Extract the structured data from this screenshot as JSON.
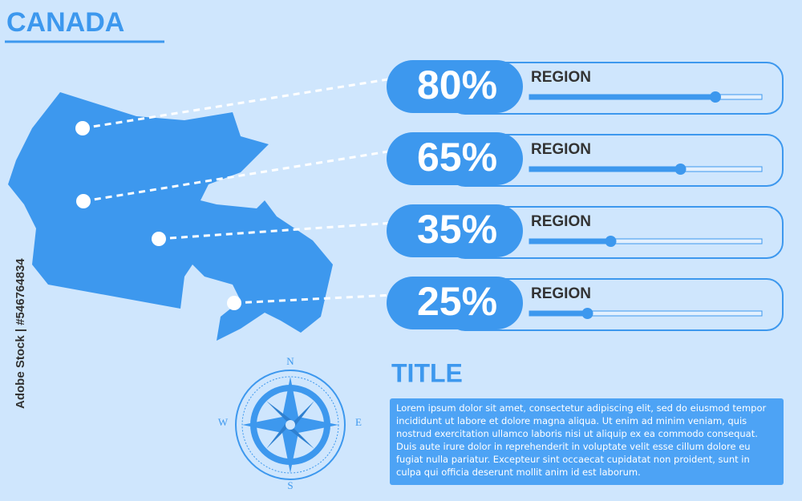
{
  "header": {
    "title": "CANADA"
  },
  "regions": [
    {
      "label": "80%",
      "value": 80,
      "name": "REGION"
    },
    {
      "label": "65%",
      "value": 65,
      "name": "REGION"
    },
    {
      "label": "35%",
      "value": 35,
      "name": "REGION"
    },
    {
      "label": "25%",
      "value": 25,
      "name": "REGION"
    }
  ],
  "compass": {
    "n": "N",
    "e": "E",
    "s": "S",
    "w": "W"
  },
  "info": {
    "title": "TITLE",
    "text": "Lorem ipsum dolor sit amet, consectetur adipiscing elit, sed do eiusmod tempor incididunt ut labore et dolore magna aliqua. Ut enim ad minim veniam, quis nostrud exercitation ullamco laboris nisi ut aliquip ex ea commodo consequat. Duis aute irure dolor in reprehenderit in voluptate velit esse cillum dolore eu fugiat nulla pariatur. Excepteur sint occaecat cupidatat non proident, sunt in culpa qui officia deserunt mollit anim id est laborum."
  },
  "watermark": "Adobe Stock | #546764834"
}
